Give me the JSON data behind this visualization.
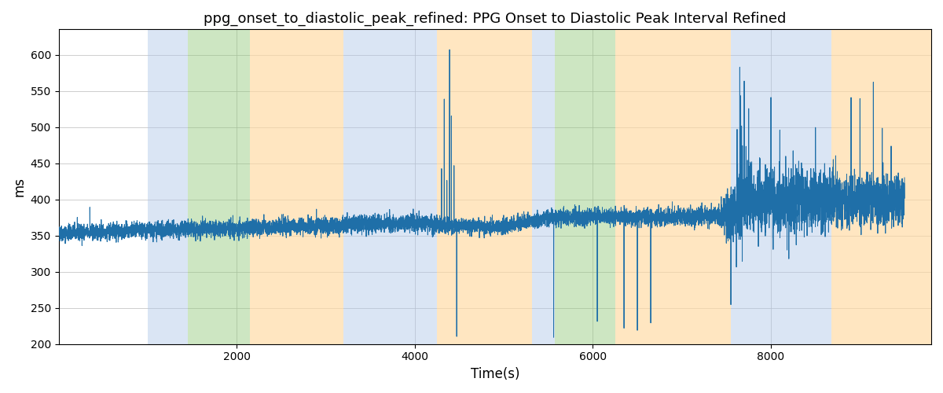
{
  "title": "ppg_onset_to_diastolic_peak_refined: PPG Onset to Diastolic Peak Interval Refined",
  "xlabel": "Time(s)",
  "ylabel": "ms",
  "ylim": [
    200,
    635
  ],
  "xlim": [
    0,
    9800
  ],
  "figsize": [
    12.0,
    5.0
  ],
  "dpi": 100,
  "bg_bands": [
    {
      "xmin": 0,
      "xmax": 1000,
      "color": "#ffffff",
      "alpha": 0.0
    },
    {
      "xmin": 1000,
      "xmax": 1450,
      "color": "#aec6e8",
      "alpha": 0.45
    },
    {
      "xmin": 1450,
      "xmax": 2150,
      "color": "#90c878",
      "alpha": 0.45
    },
    {
      "xmin": 2150,
      "xmax": 3200,
      "color": "#ffd9a0",
      "alpha": 0.65
    },
    {
      "xmin": 3200,
      "xmax": 4250,
      "color": "#aec6e8",
      "alpha": 0.45
    },
    {
      "xmin": 4250,
      "xmax": 5320,
      "color": "#ffd9a0",
      "alpha": 0.65
    },
    {
      "xmin": 5320,
      "xmax": 5570,
      "color": "#aec6e8",
      "alpha": 0.45
    },
    {
      "xmin": 5570,
      "xmax": 6250,
      "color": "#90c878",
      "alpha": 0.45
    },
    {
      "xmin": 6250,
      "xmax": 7550,
      "color": "#ffd9a0",
      "alpha": 0.65
    },
    {
      "xmin": 7550,
      "xmax": 8680,
      "color": "#aec6e8",
      "alpha": 0.45
    },
    {
      "xmin": 8680,
      "xmax": 9800,
      "color": "#ffd9a0",
      "alpha": 0.65
    }
  ],
  "line_color": "#1f6fa8",
  "line_width": 0.7,
  "grid_color": "#bbbbbb",
  "seed": 42,
  "xticks": [
    2000,
    4000,
    6000,
    8000
  ],
  "yticks": [
    200,
    250,
    300,
    350,
    400,
    450,
    500,
    550,
    600
  ]
}
